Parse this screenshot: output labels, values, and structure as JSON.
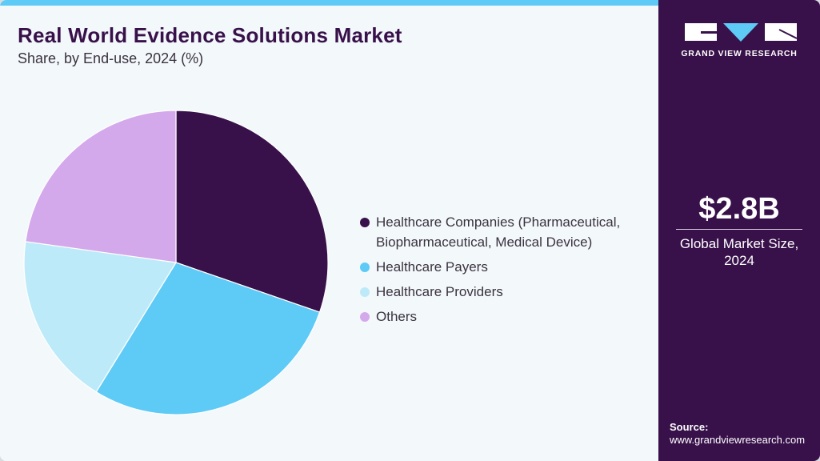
{
  "header": {
    "title": "Real World Evidence Solutions Market",
    "subtitle": "Share, by End-use, 2024 (%)"
  },
  "legend": {
    "items": [
      {
        "label": "Healthcare Companies (Pharmaceutical, Biopharmaceutical, Medical Device)",
        "line1": "Healthcare Companies (Pharmaceutical,",
        "line2": "Biopharmaceutical, Medical Device)",
        "color": "#38114a"
      },
      {
        "label": "Healthcare Payers",
        "color": "#5ecaf6"
      },
      {
        "label": "Healthcare Providers",
        "color": "#bdeaf9"
      },
      {
        "label": "Others",
        "color": "#d4a9ec"
      }
    ]
  },
  "sidebar": {
    "brand": "GRAND VIEW RESEARCH",
    "market_value": "$2.8B",
    "market_caption_line1": "Global Market Size,",
    "market_caption_line2": "2024",
    "source_label": "Source:",
    "source_url": "www.grandviewresearch.com"
  },
  "colors": {
    "accent_bar": "#5ecaf6",
    "brand_purple": "#38114a",
    "background": "#f3f8fb"
  },
  "chart_data": {
    "type": "pie",
    "title": "Real World Evidence Solutions Market",
    "subtitle": "Share, by End-use, 2024 (%)",
    "categories": [
      "Healthcare Companies (Pharmaceutical, Biopharmaceutical, Medical Device)",
      "Healthcare Payers",
      "Healthcare Providers",
      "Others"
    ],
    "values": [
      30.3,
      28.5,
      18.4,
      22.8
    ],
    "colors": [
      "#38114a",
      "#5ecaf6",
      "#bdeaf9",
      "#d4a9ec"
    ],
    "start_angle": "12 o'clock, clockwise",
    "legend_position": "right",
    "data_labels": false
  }
}
